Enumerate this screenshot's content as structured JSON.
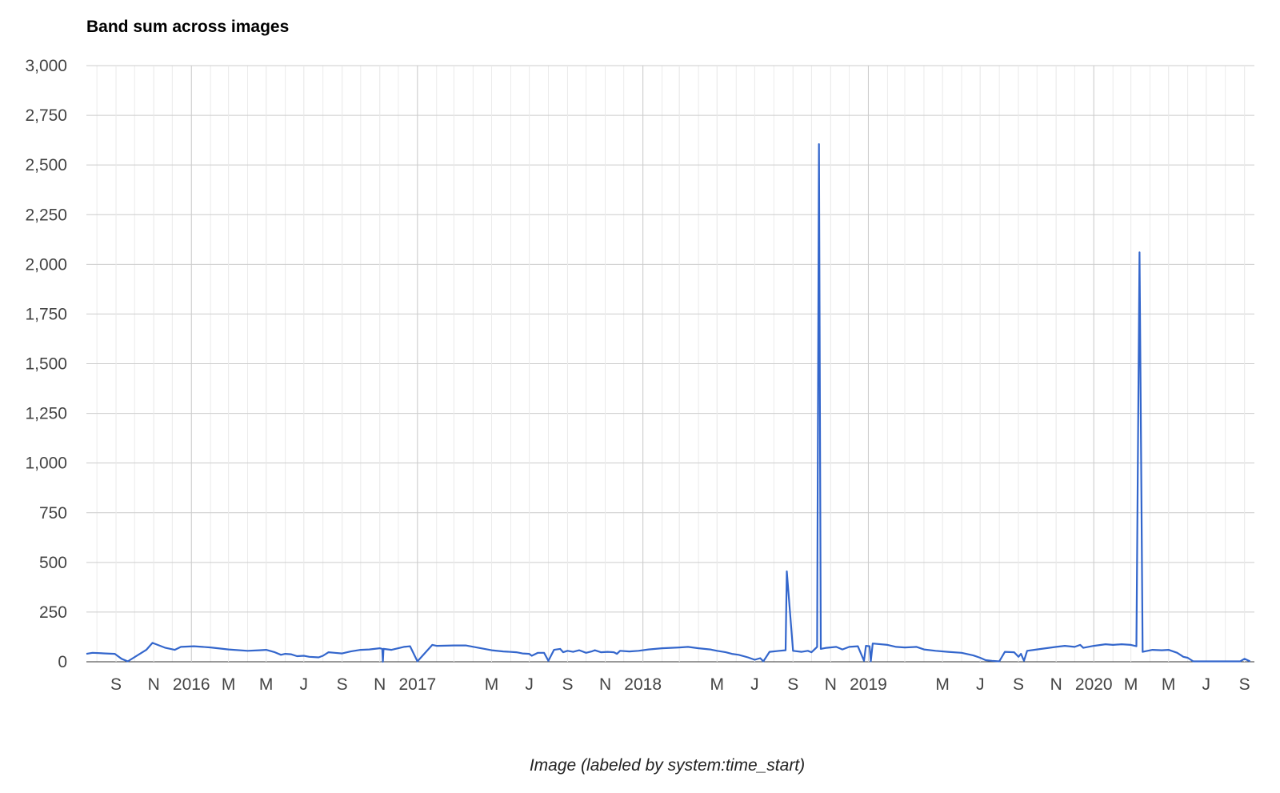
{
  "colors": {
    "series": "#3366cc",
    "major_grid": "#cccccc",
    "minor_grid": "#ebebeb",
    "baseline": "#333333"
  },
  "chart_data": {
    "type": "line",
    "title": "Band sum across images",
    "xlabel": "Image (labeled by system:time_start)",
    "ylabel": "",
    "ylim": [
      0,
      3000
    ],
    "xlim": [
      "2015-07-15",
      "2020-09-17"
    ],
    "grid": true,
    "legend": "none",
    "y_ticks": [
      {
        "value": 0,
        "label": "0"
      },
      {
        "value": 250,
        "label": "250"
      },
      {
        "value": 500,
        "label": "500"
      },
      {
        "value": 750,
        "label": "750"
      },
      {
        "value": 1000,
        "label": "1,000"
      },
      {
        "value": 1250,
        "label": "1,250"
      },
      {
        "value": 1500,
        "label": "1,500"
      },
      {
        "value": 1750,
        "label": "1,750"
      },
      {
        "value": 2000,
        "label": "2,000"
      },
      {
        "value": 2250,
        "label": "2,250"
      },
      {
        "value": 2500,
        "label": "2,500"
      },
      {
        "value": 2750,
        "label": "2,750"
      },
      {
        "value": 3000,
        "label": "3,000"
      }
    ],
    "x_ticks": [
      {
        "date": "2015-09-01",
        "label": "S"
      },
      {
        "date": "2015-11-01",
        "label": "N"
      },
      {
        "date": "2016-01-01",
        "label": "2016",
        "major": true
      },
      {
        "date": "2016-03-01",
        "label": "M"
      },
      {
        "date": "2016-05-01",
        "label": "M"
      },
      {
        "date": "2016-07-01",
        "label": "J"
      },
      {
        "date": "2016-09-01",
        "label": "S"
      },
      {
        "date": "2016-11-01",
        "label": "N"
      },
      {
        "date": "2017-01-01",
        "label": "2017",
        "major": true
      },
      {
        "date": "2017-03-01",
        "label": ""
      },
      {
        "date": "2017-05-01",
        "label": "M"
      },
      {
        "date": "2017-07-01",
        "label": "J"
      },
      {
        "date": "2017-09-01",
        "label": "S"
      },
      {
        "date": "2017-11-01",
        "label": "N"
      },
      {
        "date": "2018-01-01",
        "label": "2018",
        "major": true
      },
      {
        "date": "2018-03-01",
        "label": ""
      },
      {
        "date": "2018-05-01",
        "label": "M"
      },
      {
        "date": "2018-07-01",
        "label": "J"
      },
      {
        "date": "2018-09-01",
        "label": "S"
      },
      {
        "date": "2018-11-01",
        "label": "N"
      },
      {
        "date": "2019-01-01",
        "label": "2019",
        "major": true
      },
      {
        "date": "2019-03-01",
        "label": ""
      },
      {
        "date": "2019-05-01",
        "label": "M"
      },
      {
        "date": "2019-07-01",
        "label": "J"
      },
      {
        "date": "2019-09-01",
        "label": "S"
      },
      {
        "date": "2019-11-01",
        "label": "N"
      },
      {
        "date": "2020-01-01",
        "label": "2020",
        "major": true
      },
      {
        "date": "2020-03-01",
        "label": "M"
      },
      {
        "date": "2020-05-01",
        "label": "M"
      },
      {
        "date": "2020-07-01",
        "label": "J"
      },
      {
        "date": "2020-09-01",
        "label": "S"
      }
    ],
    "series": [
      {
        "points": [
          [
            "2015-07-15",
            40
          ],
          [
            "2015-07-25",
            45
          ],
          [
            "2015-08-15",
            42
          ],
          [
            "2015-08-30",
            40
          ],
          [
            "2015-09-10",
            15
          ],
          [
            "2015-09-20",
            2
          ],
          [
            "2015-10-20",
            60
          ],
          [
            "2015-10-30",
            95
          ],
          [
            "2015-11-20",
            70
          ],
          [
            "2015-12-05",
            60
          ],
          [
            "2015-12-15",
            75
          ],
          [
            "2016-01-05",
            78
          ],
          [
            "2016-02-01",
            72
          ],
          [
            "2016-03-01",
            62
          ],
          [
            "2016-04-01",
            55
          ],
          [
            "2016-04-20",
            58
          ],
          [
            "2016-05-01",
            60
          ],
          [
            "2016-05-15",
            48
          ],
          [
            "2016-05-25",
            35
          ],
          [
            "2016-06-01",
            40
          ],
          [
            "2016-06-10",
            38
          ],
          [
            "2016-06-20",
            28
          ],
          [
            "2016-07-01",
            30
          ],
          [
            "2016-07-10",
            25
          ],
          [
            "2016-07-25",
            22
          ],
          [
            "2016-08-01",
            30
          ],
          [
            "2016-08-10",
            48
          ],
          [
            "2016-08-20",
            45
          ],
          [
            "2016-09-01",
            42
          ],
          [
            "2016-09-15",
            52
          ],
          [
            "2016-10-01",
            60
          ],
          [
            "2016-10-15",
            62
          ],
          [
            "2016-11-01",
            68
          ],
          [
            "2016-11-05",
            65
          ],
          [
            "2016-11-06",
            0
          ],
          [
            "2016-11-07",
            65
          ],
          [
            "2016-11-20",
            60
          ],
          [
            "2016-12-01",
            68
          ],
          [
            "2016-12-10",
            75
          ],
          [
            "2016-12-20",
            78
          ],
          [
            "2017-01-01",
            2
          ],
          [
            "2017-01-25",
            85
          ],
          [
            "2017-02-01",
            80
          ],
          [
            "2017-03-01",
            82
          ],
          [
            "2017-03-20",
            82
          ],
          [
            "2017-04-10",
            70
          ],
          [
            "2017-05-01",
            58
          ],
          [
            "2017-05-20",
            52
          ],
          [
            "2017-06-10",
            48
          ],
          [
            "2017-06-20",
            42
          ],
          [
            "2017-07-01",
            40
          ],
          [
            "2017-07-05",
            30
          ],
          [
            "2017-07-15",
            45
          ],
          [
            "2017-07-25",
            45
          ],
          [
            "2017-08-01",
            5
          ],
          [
            "2017-08-10",
            60
          ],
          [
            "2017-08-20",
            65
          ],
          [
            "2017-08-25",
            48
          ],
          [
            "2017-09-01",
            55
          ],
          [
            "2017-09-10",
            50
          ],
          [
            "2017-09-20",
            58
          ],
          [
            "2017-10-01",
            45
          ],
          [
            "2017-10-10",
            52
          ],
          [
            "2017-10-15",
            58
          ],
          [
            "2017-10-25",
            48
          ],
          [
            "2017-11-05",
            50
          ],
          [
            "2017-11-15",
            48
          ],
          [
            "2017-11-20",
            40
          ],
          [
            "2017-11-25",
            55
          ],
          [
            "2017-12-10",
            52
          ],
          [
            "2017-12-25",
            55
          ],
          [
            "2018-01-10",
            62
          ],
          [
            "2018-02-01",
            68
          ],
          [
            "2018-03-01",
            72
          ],
          [
            "2018-03-15",
            75
          ],
          [
            "2018-04-01",
            68
          ],
          [
            "2018-04-20",
            62
          ],
          [
            "2018-05-01",
            55
          ],
          [
            "2018-05-15",
            48
          ],
          [
            "2018-05-25",
            40
          ],
          [
            "2018-06-05",
            35
          ],
          [
            "2018-06-20",
            22
          ],
          [
            "2018-07-01",
            10
          ],
          [
            "2018-07-10",
            18
          ],
          [
            "2018-07-15",
            2
          ],
          [
            "2018-07-25",
            50
          ],
          [
            "2018-08-10",
            55
          ],
          [
            "2018-08-20",
            58
          ],
          [
            "2018-08-22",
            455
          ],
          [
            "2018-09-01",
            55
          ],
          [
            "2018-09-15",
            50
          ],
          [
            "2018-09-25",
            55
          ],
          [
            "2018-10-01",
            48
          ],
          [
            "2018-10-10",
            75
          ],
          [
            "2018-10-13",
            2605
          ],
          [
            "2018-10-16",
            65
          ],
          [
            "2018-10-25",
            70
          ],
          [
            "2018-11-10",
            75
          ],
          [
            "2018-11-20",
            62
          ],
          [
            "2018-12-01",
            75
          ],
          [
            "2018-12-15",
            78
          ],
          [
            "2018-12-25",
            5
          ],
          [
            "2018-12-28",
            80
          ],
          [
            "2019-01-03",
            78
          ],
          [
            "2019-01-05",
            2
          ],
          [
            "2019-01-08",
            92
          ],
          [
            "2019-02-01",
            85
          ],
          [
            "2019-02-15",
            75
          ],
          [
            "2019-03-01",
            72
          ],
          [
            "2019-03-20",
            75
          ],
          [
            "2019-04-01",
            62
          ],
          [
            "2019-04-20",
            55
          ],
          [
            "2019-05-10",
            50
          ],
          [
            "2019-06-01",
            45
          ],
          [
            "2019-06-20",
            32
          ],
          [
            "2019-07-01",
            20
          ],
          [
            "2019-07-10",
            8
          ],
          [
            "2019-07-20",
            5
          ],
          [
            "2019-08-01",
            2
          ],
          [
            "2019-08-10",
            50
          ],
          [
            "2019-08-25",
            48
          ],
          [
            "2019-09-01",
            25
          ],
          [
            "2019-09-05",
            40
          ],
          [
            "2019-09-10",
            5
          ],
          [
            "2019-09-15",
            55
          ],
          [
            "2019-10-01",
            62
          ],
          [
            "2019-10-20",
            70
          ],
          [
            "2019-11-01",
            75
          ],
          [
            "2019-11-15",
            80
          ],
          [
            "2019-12-01",
            75
          ],
          [
            "2019-12-10",
            85
          ],
          [
            "2019-12-15",
            70
          ],
          [
            "2020-01-01",
            80
          ],
          [
            "2020-01-20",
            88
          ],
          [
            "2020-02-01",
            85
          ],
          [
            "2020-02-15",
            88
          ],
          [
            "2020-03-01",
            85
          ],
          [
            "2020-03-10",
            78
          ],
          [
            "2020-03-15",
            2060
          ],
          [
            "2020-03-20",
            50
          ],
          [
            "2020-04-05",
            60
          ],
          [
            "2020-04-20",
            58
          ],
          [
            "2020-05-01",
            60
          ],
          [
            "2020-05-15",
            45
          ],
          [
            "2020-05-25",
            25
          ],
          [
            "2020-06-01",
            20
          ],
          [
            "2020-06-10",
            2
          ],
          [
            "2020-08-25",
            2
          ],
          [
            "2020-09-01",
            15
          ],
          [
            "2020-09-10",
            2
          ]
        ]
      }
    ]
  }
}
